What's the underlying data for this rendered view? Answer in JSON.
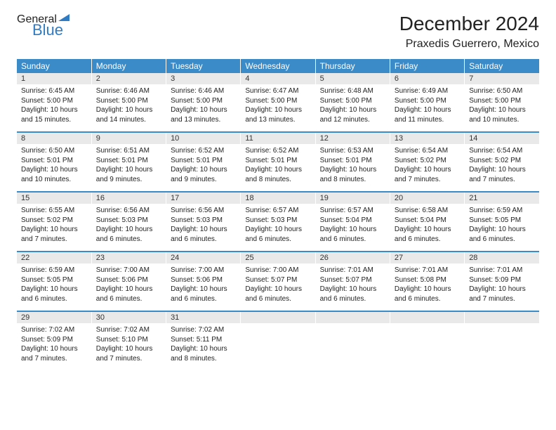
{
  "logo": {
    "general": "General",
    "blue": "Blue"
  },
  "title": "December 2024",
  "location": "Praxedis Guerrero, Mexico",
  "weekdays": [
    "Sunday",
    "Monday",
    "Tuesday",
    "Wednesday",
    "Thursday",
    "Friday",
    "Saturday"
  ],
  "colors": {
    "header_bg": "#3b8bc9",
    "header_text": "#ffffff",
    "daynum_bg": "#e9e9e9",
    "divider": "#3b8bc9",
    "text": "#222222",
    "logo_gray": "#5a5a5a",
    "logo_blue": "#2f7bc4"
  },
  "weeks": [
    [
      {
        "n": "1",
        "sr": "Sunrise: 6:45 AM",
        "ss": "Sunset: 5:00 PM",
        "d1": "Daylight: 10 hours",
        "d2": "and 15 minutes."
      },
      {
        "n": "2",
        "sr": "Sunrise: 6:46 AM",
        "ss": "Sunset: 5:00 PM",
        "d1": "Daylight: 10 hours",
        "d2": "and 14 minutes."
      },
      {
        "n": "3",
        "sr": "Sunrise: 6:46 AM",
        "ss": "Sunset: 5:00 PM",
        "d1": "Daylight: 10 hours",
        "d2": "and 13 minutes."
      },
      {
        "n": "4",
        "sr": "Sunrise: 6:47 AM",
        "ss": "Sunset: 5:00 PM",
        "d1": "Daylight: 10 hours",
        "d2": "and 13 minutes."
      },
      {
        "n": "5",
        "sr": "Sunrise: 6:48 AM",
        "ss": "Sunset: 5:00 PM",
        "d1": "Daylight: 10 hours",
        "d2": "and 12 minutes."
      },
      {
        "n": "6",
        "sr": "Sunrise: 6:49 AM",
        "ss": "Sunset: 5:00 PM",
        "d1": "Daylight: 10 hours",
        "d2": "and 11 minutes."
      },
      {
        "n": "7",
        "sr": "Sunrise: 6:50 AM",
        "ss": "Sunset: 5:00 PM",
        "d1": "Daylight: 10 hours",
        "d2": "and 10 minutes."
      }
    ],
    [
      {
        "n": "8",
        "sr": "Sunrise: 6:50 AM",
        "ss": "Sunset: 5:01 PM",
        "d1": "Daylight: 10 hours",
        "d2": "and 10 minutes."
      },
      {
        "n": "9",
        "sr": "Sunrise: 6:51 AM",
        "ss": "Sunset: 5:01 PM",
        "d1": "Daylight: 10 hours",
        "d2": "and 9 minutes."
      },
      {
        "n": "10",
        "sr": "Sunrise: 6:52 AM",
        "ss": "Sunset: 5:01 PM",
        "d1": "Daylight: 10 hours",
        "d2": "and 9 minutes."
      },
      {
        "n": "11",
        "sr": "Sunrise: 6:52 AM",
        "ss": "Sunset: 5:01 PM",
        "d1": "Daylight: 10 hours",
        "d2": "and 8 minutes."
      },
      {
        "n": "12",
        "sr": "Sunrise: 6:53 AM",
        "ss": "Sunset: 5:01 PM",
        "d1": "Daylight: 10 hours",
        "d2": "and 8 minutes."
      },
      {
        "n": "13",
        "sr": "Sunrise: 6:54 AM",
        "ss": "Sunset: 5:02 PM",
        "d1": "Daylight: 10 hours",
        "d2": "and 7 minutes."
      },
      {
        "n": "14",
        "sr": "Sunrise: 6:54 AM",
        "ss": "Sunset: 5:02 PM",
        "d1": "Daylight: 10 hours",
        "d2": "and 7 minutes."
      }
    ],
    [
      {
        "n": "15",
        "sr": "Sunrise: 6:55 AM",
        "ss": "Sunset: 5:02 PM",
        "d1": "Daylight: 10 hours",
        "d2": "and 7 minutes."
      },
      {
        "n": "16",
        "sr": "Sunrise: 6:56 AM",
        "ss": "Sunset: 5:03 PM",
        "d1": "Daylight: 10 hours",
        "d2": "and 6 minutes."
      },
      {
        "n": "17",
        "sr": "Sunrise: 6:56 AM",
        "ss": "Sunset: 5:03 PM",
        "d1": "Daylight: 10 hours",
        "d2": "and 6 minutes."
      },
      {
        "n": "18",
        "sr": "Sunrise: 6:57 AM",
        "ss": "Sunset: 5:03 PM",
        "d1": "Daylight: 10 hours",
        "d2": "and 6 minutes."
      },
      {
        "n": "19",
        "sr": "Sunrise: 6:57 AM",
        "ss": "Sunset: 5:04 PM",
        "d1": "Daylight: 10 hours",
        "d2": "and 6 minutes."
      },
      {
        "n": "20",
        "sr": "Sunrise: 6:58 AM",
        "ss": "Sunset: 5:04 PM",
        "d1": "Daylight: 10 hours",
        "d2": "and 6 minutes."
      },
      {
        "n": "21",
        "sr": "Sunrise: 6:59 AM",
        "ss": "Sunset: 5:05 PM",
        "d1": "Daylight: 10 hours",
        "d2": "and 6 minutes."
      }
    ],
    [
      {
        "n": "22",
        "sr": "Sunrise: 6:59 AM",
        "ss": "Sunset: 5:05 PM",
        "d1": "Daylight: 10 hours",
        "d2": "and 6 minutes."
      },
      {
        "n": "23",
        "sr": "Sunrise: 7:00 AM",
        "ss": "Sunset: 5:06 PM",
        "d1": "Daylight: 10 hours",
        "d2": "and 6 minutes."
      },
      {
        "n": "24",
        "sr": "Sunrise: 7:00 AM",
        "ss": "Sunset: 5:06 PM",
        "d1": "Daylight: 10 hours",
        "d2": "and 6 minutes."
      },
      {
        "n": "25",
        "sr": "Sunrise: 7:00 AM",
        "ss": "Sunset: 5:07 PM",
        "d1": "Daylight: 10 hours",
        "d2": "and 6 minutes."
      },
      {
        "n": "26",
        "sr": "Sunrise: 7:01 AM",
        "ss": "Sunset: 5:07 PM",
        "d1": "Daylight: 10 hours",
        "d2": "and 6 minutes."
      },
      {
        "n": "27",
        "sr": "Sunrise: 7:01 AM",
        "ss": "Sunset: 5:08 PM",
        "d1": "Daylight: 10 hours",
        "d2": "and 6 minutes."
      },
      {
        "n": "28",
        "sr": "Sunrise: 7:01 AM",
        "ss": "Sunset: 5:09 PM",
        "d1": "Daylight: 10 hours",
        "d2": "and 7 minutes."
      }
    ],
    [
      {
        "n": "29",
        "sr": "Sunrise: 7:02 AM",
        "ss": "Sunset: 5:09 PM",
        "d1": "Daylight: 10 hours",
        "d2": "and 7 minutes."
      },
      {
        "n": "30",
        "sr": "Sunrise: 7:02 AM",
        "ss": "Sunset: 5:10 PM",
        "d1": "Daylight: 10 hours",
        "d2": "and 7 minutes."
      },
      {
        "n": "31",
        "sr": "Sunrise: 7:02 AM",
        "ss": "Sunset: 5:11 PM",
        "d1": "Daylight: 10 hours",
        "d2": "and 8 minutes."
      },
      null,
      null,
      null,
      null
    ]
  ]
}
